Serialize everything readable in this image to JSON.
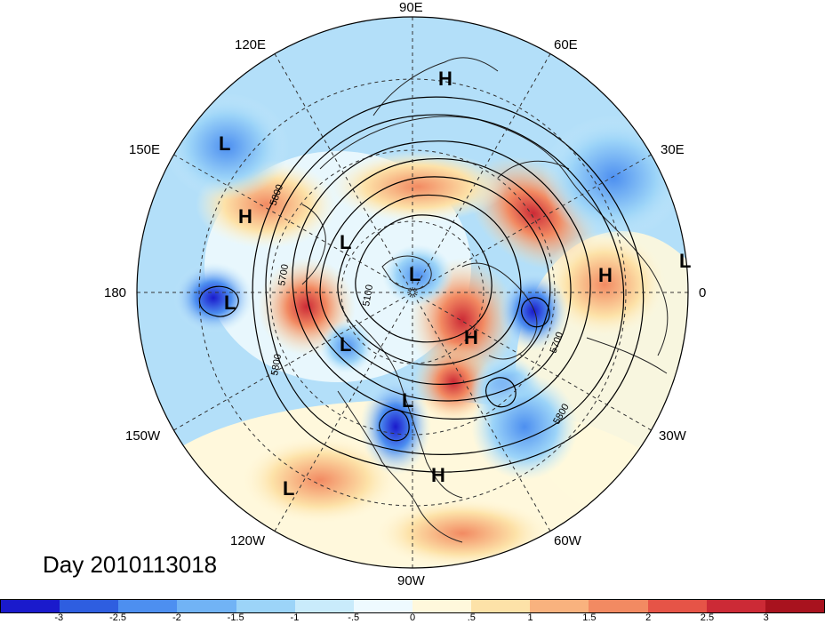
{
  "title": "Day 2010113018",
  "longitude_labels": {
    "lon_90e": "90E",
    "lon_60e": "60E",
    "lon_30e": "30E",
    "lon_0": "0",
    "lon_30w": "30W",
    "lon_60w": "60W",
    "lon_90w": "90W",
    "lon_120w": "120W",
    "lon_150w": "150W",
    "lon_180": "180",
    "lon_150e": "150E",
    "lon_120e": "120E"
  },
  "pressure_centers": {
    "h1": "H",
    "h2": "H",
    "h3": "H",
    "h4": "H",
    "h5": "H",
    "l1": "L",
    "l2": "L",
    "l3": "L",
    "l4": "L",
    "l5": "L",
    "l6": "L",
    "l7": "L",
    "l8": "L"
  },
  "contour_labels": {
    "c1": "5800",
    "c2": "5700",
    "c3": "5100",
    "c4": "5800",
    "c5": "5700",
    "c6": "5800"
  },
  "colorbar": {
    "ticks": [
      "-3",
      "-2.5",
      "-2",
      "-1.5",
      "-1",
      "-.5",
      "0",
      ".5",
      "1",
      "1.5",
      "2",
      "2.5",
      "3"
    ],
    "colors": [
      "#1a1acc",
      "#2e5ee0",
      "#4d8ff0",
      "#71b3f5",
      "#9cd4f8",
      "#c9ebfb",
      "#eefaff",
      "#fff8dc",
      "#fde2a8",
      "#f9b27e",
      "#f28a62",
      "#e65447",
      "#cc2a36",
      "#a8121e"
    ]
  }
}
